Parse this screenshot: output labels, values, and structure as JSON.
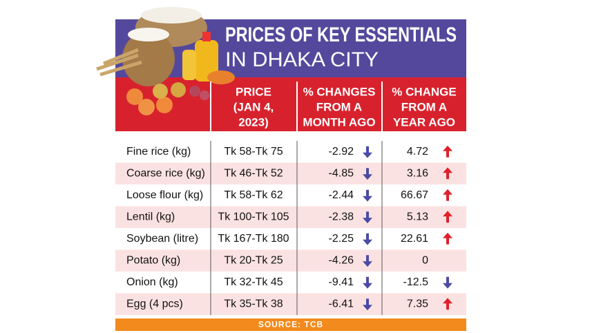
{
  "header": {
    "title_line1": "PRICES OF KEY ESSENTIALS",
    "title_line2": "IN DHAKA CITY"
  },
  "table": {
    "columns": [
      [
        "PRICE",
        "(JAN 4,",
        "2023)"
      ],
      [
        "% CHANGES",
        "FROM A",
        "MONTH AGO"
      ],
      [
        "% CHANGE",
        "FROM A",
        "YEAR AGO"
      ]
    ],
    "rows": [
      [
        "Fine rice (kg)",
        "Tk 58-Tk 75",
        -2.92,
        4.72
      ],
      [
        "Coarse rice (kg)",
        "Tk 46-Tk 52",
        -4.85,
        3.16
      ],
      [
        "Loose flour (kg)",
        "Tk 58-Tk 62",
        -2.44,
        66.67
      ],
      [
        "Lentil (kg)",
        "Tk 100-Tk 105",
        -2.38,
        5.13
      ],
      [
        "Soybean (litre)",
        "Tk 167-Tk 180",
        -2.25,
        22.61
      ],
      [
        "Potato (kg)",
        "Tk 20-Tk 25",
        -4.26,
        0
      ],
      [
        "Onion (kg)",
        "Tk 32-Tk 45",
        -9.41,
        -12.5
      ],
      [
        "Egg (4 pcs)",
        "Tk 35-Tk 38",
        -6.41,
        7.35
      ]
    ]
  },
  "footer": {
    "source": "SOURCE: TCB"
  }
}
